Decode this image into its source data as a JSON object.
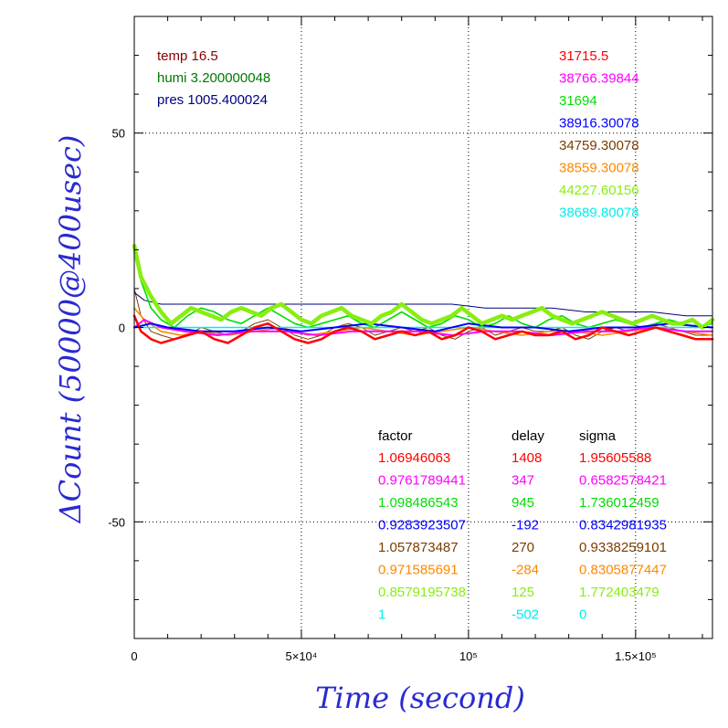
{
  "chart_data": {
    "type": "line",
    "xlabel": "Time (second)",
    "ylabel": "ΔCount (50000@400usec)",
    "xlim": [
      0,
      173000
    ],
    "ylim": [
      -80,
      80
    ],
    "x_ticks": [
      {
        "value": 0,
        "label": "0"
      },
      {
        "value": 50000,
        "label": "5×10⁴"
      },
      {
        "value": 100000,
        "label": "10⁵"
      },
      {
        "value": 150000,
        "label": "1.5×10⁵"
      }
    ],
    "y_ticks": [
      {
        "value": 50,
        "label": "50"
      },
      {
        "value": 0,
        "label": "0"
      },
      {
        "value": -50,
        "label": "-50"
      }
    ],
    "grid": true,
    "env": [
      {
        "text": "temp 16.5",
        "color": "#8b0000"
      },
      {
        "text": "humi 3.200000048",
        "color": "#007700"
      },
      {
        "text": "pres 1005.400024",
        "color": "#000080"
      }
    ],
    "series": [
      {
        "name": "31715.5",
        "color": "#ff0000",
        "factor": "1.06946063",
        "delay": "1408",
        "sigma": "1.95605588",
        "width": 2.5,
        "x": [
          0,
          2000,
          5000,
          8000,
          12000,
          16000,
          20000,
          24000,
          28000,
          32000,
          36000,
          40000,
          44000,
          48000,
          52000,
          56000,
          60000,
          64000,
          68000,
          72000,
          76000,
          80000,
          84000,
          88000,
          92000,
          96000,
          100000,
          104000,
          108000,
          112000,
          116000,
          120000,
          124000,
          128000,
          132000,
          136000,
          140000,
          144000,
          148000,
          152000,
          156000,
          160000,
          164000,
          168000,
          173000
        ],
        "y": [
          3,
          -1,
          -3,
          -4,
          -3,
          -2,
          -1,
          -3,
          -4,
          -2,
          0,
          1,
          -1,
          -3,
          -4,
          -3,
          -1,
          0,
          -1,
          -3,
          -2,
          -1,
          -2,
          -1,
          -3,
          -2,
          0,
          -1,
          -3,
          -2,
          -1,
          -2,
          -2,
          -1,
          -3,
          -2,
          0,
          -1,
          -2,
          -1,
          0,
          -1,
          -2,
          -3,
          -3
        ]
      },
      {
        "name": "38766.39844",
        "color": "#ff00ff",
        "factor": "0.9761789441",
        "delay": "347",
        "sigma": "0.6582578421",
        "width": 2,
        "x": [
          0,
          3000,
          8000,
          15000,
          25000,
          35000,
          45000,
          55000,
          65000,
          75000,
          85000,
          95000,
          105000,
          115000,
          125000,
          135000,
          145000,
          155000,
          165000,
          173000
        ],
        "y": [
          0,
          2,
          0,
          -1,
          -2,
          -1,
          -1,
          -2,
          -1,
          -1,
          -1,
          -2,
          -1,
          -1,
          -2,
          -1,
          -1,
          0,
          -1,
          -1
        ]
      },
      {
        "name": "31694",
        "color": "#00dd00",
        "factor": "1.098486543",
        "delay": "945",
        "sigma": "1.736012459",
        "width": 1.6,
        "x": [
          0,
          2000,
          5000,
          8000,
          12000,
          16000,
          20000,
          24000,
          28000,
          32000,
          36000,
          40000,
          44000,
          48000,
          52000,
          56000,
          60000,
          64000,
          68000,
          72000,
          76000,
          80000,
          84000,
          88000,
          92000,
          96000,
          100000,
          104000,
          108000,
          112000,
          116000,
          120000,
          124000,
          128000,
          132000,
          136000,
          140000,
          144000,
          148000,
          152000,
          156000,
          160000,
          164000,
          168000,
          173000
        ],
        "y": [
          19,
          12,
          5,
          2,
          0,
          3,
          5,
          4,
          2,
          1,
          3,
          5,
          3,
          1,
          0,
          1,
          2,
          3,
          1,
          0,
          2,
          4,
          2,
          0,
          1,
          3,
          2,
          0,
          1,
          3,
          1,
          0,
          2,
          3,
          1,
          0,
          1,
          2,
          1,
          0,
          1,
          2,
          1,
          0,
          1
        ]
      },
      {
        "name": "38916.30078",
        "color": "#0000ff",
        "factor": "0.9283923507",
        "delay": "-192",
        "sigma": "0.8342981935",
        "width": 2,
        "x": [
          0,
          5000,
          10000,
          20000,
          30000,
          40000,
          50000,
          60000,
          70000,
          80000,
          90000,
          100000,
          110000,
          120000,
          130000,
          140000,
          150000,
          160000,
          173000
        ],
        "y": [
          0,
          1,
          0,
          -1,
          -1,
          0,
          -1,
          0,
          1,
          0,
          -1,
          1,
          0,
          0,
          -1,
          0,
          0,
          1,
          0
        ]
      },
      {
        "name": "34759.30078",
        "color": "#7a3d00",
        "factor": "1.057873487",
        "delay": "270",
        "sigma": "0.9338259101",
        "width": 1,
        "x": [
          0,
          2000,
          5000,
          8000,
          12000,
          16000,
          20000,
          24000,
          28000,
          32000,
          36000,
          40000,
          44000,
          48000,
          52000,
          56000,
          60000,
          64000,
          68000,
          72000,
          76000,
          80000,
          84000,
          88000,
          92000,
          96000,
          100000,
          104000,
          108000,
          112000,
          116000,
          120000,
          124000,
          128000,
          132000,
          136000,
          140000,
          144000,
          148000,
          152000,
          156000,
          160000,
          164000,
          168000,
          173000
        ],
        "y": [
          10,
          3,
          -1,
          -2,
          -3,
          -2,
          0,
          -1,
          -2,
          -1,
          1,
          2,
          0,
          -2,
          -3,
          -2,
          0,
          1,
          0,
          -2,
          -1,
          0,
          -1,
          0,
          -2,
          -3,
          -1,
          0,
          -2,
          -1,
          0,
          -1,
          -1,
          0,
          -2,
          -3,
          -1,
          0,
          -1,
          0,
          1,
          0,
          -1,
          -2,
          -2
        ]
      },
      {
        "name": "38559.30078",
        "color": "#ff8800",
        "factor": "0.971585691",
        "delay": "-284",
        "sigma": "0.8305877447",
        "width": 1.6,
        "x": [
          0,
          3000,
          8000,
          14000,
          20000,
          28000,
          36000,
          44000,
          52000,
          60000,
          68000,
          76000,
          84000,
          92000,
          100000,
          108000,
          116000,
          124000,
          132000,
          140000,
          148000,
          156000,
          164000,
          173000
        ],
        "y": [
          5,
          2,
          -1,
          -2,
          -1,
          -2,
          -1,
          0,
          -2,
          -1,
          0,
          -1,
          -2,
          -1,
          0,
          -1,
          -2,
          -1,
          -1,
          -2,
          -1,
          0,
          -1,
          -2
        ]
      },
      {
        "name": "44227.60156",
        "color": "#88ee11",
        "factor": "0.8579195738",
        "delay": "125",
        "sigma": "1.772403479",
        "width": 4.5,
        "x": [
          0,
          2000,
          5000,
          8000,
          11000,
          14000,
          17000,
          20000,
          23000,
          26000,
          29000,
          32000,
          35000,
          38000,
          41000,
          44000,
          47000,
          50000,
          53000,
          56000,
          59000,
          62000,
          65000,
          68000,
          71000,
          74000,
          77000,
          80000,
          83000,
          86000,
          89000,
          92000,
          95000,
          98000,
          101000,
          104000,
          107000,
          110000,
          113000,
          116000,
          119000,
          122000,
          125000,
          128000,
          131000,
          134000,
          137000,
          140000,
          143000,
          146000,
          149000,
          152000,
          155000,
          158000,
          161000,
          164000,
          167000,
          170000,
          173000
        ],
        "y": [
          21,
          13,
          8,
          4,
          1,
          3,
          5,
          4,
          3,
          2,
          4,
          5,
          4,
          3,
          5,
          6,
          4,
          2,
          1,
          3,
          4,
          5,
          3,
          2,
          1,
          3,
          4,
          6,
          4,
          2,
          1,
          2,
          3,
          5,
          3,
          1,
          2,
          3,
          2,
          3,
          4,
          5,
          3,
          2,
          1,
          2,
          3,
          4,
          3,
          2,
          1,
          2,
          3,
          2,
          1,
          1,
          2,
          0,
          2
        ]
      },
      {
        "name": "38689.80078",
        "color": "#00eeee",
        "factor": "1",
        "delay": "-502",
        "sigma": "0",
        "width": 1.6,
        "x": [
          0,
          4000,
          10000,
          20000,
          30000,
          40000,
          50000,
          60000,
          70000,
          80000,
          90000,
          100000,
          110000,
          120000,
          130000,
          140000,
          150000,
          160000,
          173000
        ],
        "y": [
          0,
          0,
          0,
          0,
          0,
          0,
          0,
          0,
          0,
          0,
          0,
          0,
          0,
          0,
          0,
          0,
          0,
          0,
          0
        ]
      },
      {
        "name": "pres",
        "color": "#000080",
        "width": 1,
        "x": [
          0,
          3000,
          8000,
          15000,
          25000,
          35000,
          45000,
          55000,
          65000,
          75000,
          85000,
          95000,
          105000,
          115000,
          125000,
          135000,
          145000,
          155000,
          165000,
          173000
        ],
        "y": [
          9,
          7,
          6,
          6,
          6,
          6,
          6,
          6,
          6,
          6,
          6,
          6,
          5,
          5,
          5,
          4,
          4,
          4,
          3,
          3
        ]
      }
    ],
    "table": {
      "headers": [
        "factor",
        "delay",
        "sigma"
      ]
    }
  }
}
